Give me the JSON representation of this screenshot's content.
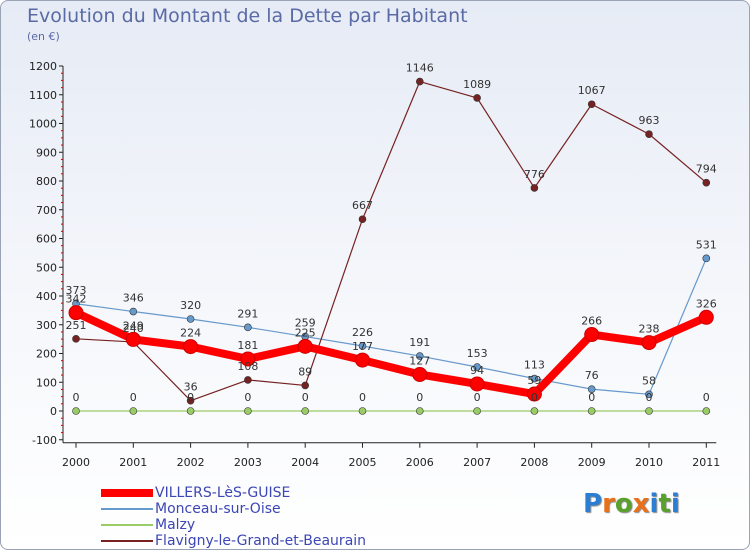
{
  "title": "Evolution du Montant de la Dette par Habitant",
  "subtitle": "(en €)",
  "logo": "Proxiti",
  "chart_data": {
    "type": "line",
    "title": "Evolution du Montant de la Dette par Habitant",
    "ylabel": "(en €)",
    "xlabel": "",
    "ylim": [
      -100,
      1200
    ],
    "yticks": [
      -100,
      0,
      100,
      200,
      300,
      400,
      500,
      600,
      700,
      800,
      900,
      1000,
      1100,
      1200
    ],
    "categories": [
      "2000",
      "2001",
      "2002",
      "2003",
      "2004",
      "2005",
      "2006",
      "2007",
      "2008",
      "2009",
      "2010",
      "2011"
    ],
    "grid": false,
    "legend": "bottom-left",
    "series": [
      {
        "name": "VILLERS-LèS-GUISE",
        "color": "#ff0000",
        "values": [
          342,
          249,
          224,
          181,
          225,
          177,
          127,
          94,
          59,
          266,
          238,
          326
        ]
      },
      {
        "name": "Monceau-sur-Oise",
        "color": "#6699cc",
        "values": [
          373,
          346,
          320,
          291,
          259,
          226,
          191,
          153,
          113,
          76,
          58,
          531
        ]
      },
      {
        "name": "Malzy",
        "color": "#99cc66",
        "values": [
          0,
          0,
          0,
          0,
          0,
          0,
          0,
          0,
          0,
          0,
          0,
          0
        ]
      },
      {
        "name": "Flavigny-le-Grand-et-Beaurain",
        "color": "#772222",
        "values": [
          251,
          240,
          36,
          108,
          89,
          667,
          1146,
          1089,
          776,
          1067,
          963,
          794
        ]
      }
    ],
    "data_labels": [
      {
        "series": 0,
        "index": 0,
        "text": "342"
      },
      {
        "series": 1,
        "index": 0,
        "text": "373"
      },
      {
        "series": 3,
        "index": 0,
        "text": "251"
      },
      {
        "series": 2,
        "index": 0,
        "text": "0"
      },
      {
        "series": 1,
        "index": 1,
        "text": "346"
      },
      {
        "series": 0,
        "index": 1,
        "text": "249"
      },
      {
        "series": 3,
        "index": 1,
        "text": "240"
      },
      {
        "series": 2,
        "index": 1,
        "text": "0"
      },
      {
        "series": 1,
        "index": 2,
        "text": "320"
      },
      {
        "series": 0,
        "index": 2,
        "text": "224"
      },
      {
        "series": 3,
        "index": 2,
        "text": "36"
      },
      {
        "series": 2,
        "index": 2,
        "text": "0"
      },
      {
        "series": 1,
        "index": 3,
        "text": "291"
      },
      {
        "series": 0,
        "index": 3,
        "text": "181"
      },
      {
        "series": 3,
        "index": 3,
        "text": "108"
      },
      {
        "series": 2,
        "index": 3,
        "text": "0"
      },
      {
        "series": 1,
        "index": 4,
        "text": "259"
      },
      {
        "series": 0,
        "index": 4,
        "text": "225"
      },
      {
        "series": 3,
        "index": 4,
        "text": "89"
      },
      {
        "series": 2,
        "index": 4,
        "text": "0"
      },
      {
        "series": 3,
        "index": 5,
        "text": "667"
      },
      {
        "series": 1,
        "index": 5,
        "text": "226"
      },
      {
        "series": 0,
        "index": 5,
        "text": "177"
      },
      {
        "series": 2,
        "index": 5,
        "text": "0"
      },
      {
        "series": 3,
        "index": 6,
        "text": "1146"
      },
      {
        "series": 1,
        "index": 6,
        "text": "191"
      },
      {
        "series": 0,
        "index": 6,
        "text": "127"
      },
      {
        "series": 2,
        "index": 6,
        "text": "0"
      },
      {
        "series": 3,
        "index": 7,
        "text": "1089"
      },
      {
        "series": 1,
        "index": 7,
        "text": "153"
      },
      {
        "series": 0,
        "index": 7,
        "text": "94"
      },
      {
        "series": 2,
        "index": 7,
        "text": "0"
      },
      {
        "series": 3,
        "index": 8,
        "text": "776"
      },
      {
        "series": 1,
        "index": 8,
        "text": "113"
      },
      {
        "series": 0,
        "index": 8,
        "text": "59"
      },
      {
        "series": 2,
        "index": 8,
        "text": "0"
      },
      {
        "series": 3,
        "index": 9,
        "text": "1067"
      },
      {
        "series": 0,
        "index": 9,
        "text": "266"
      },
      {
        "series": 1,
        "index": 9,
        "text": "76"
      },
      {
        "series": 2,
        "index": 9,
        "text": "0"
      },
      {
        "series": 3,
        "index": 10,
        "text": "963"
      },
      {
        "series": 0,
        "index": 10,
        "text": "238"
      },
      {
        "series": 1,
        "index": 10,
        "text": "58"
      },
      {
        "series": 2,
        "index": 10,
        "text": "0"
      },
      {
        "series": 3,
        "index": 11,
        "text": "794"
      },
      {
        "series": 1,
        "index": 11,
        "text": "531"
      },
      {
        "series": 0,
        "index": 11,
        "text": "326"
      },
      {
        "series": 2,
        "index": 11,
        "text": "0"
      }
    ]
  }
}
